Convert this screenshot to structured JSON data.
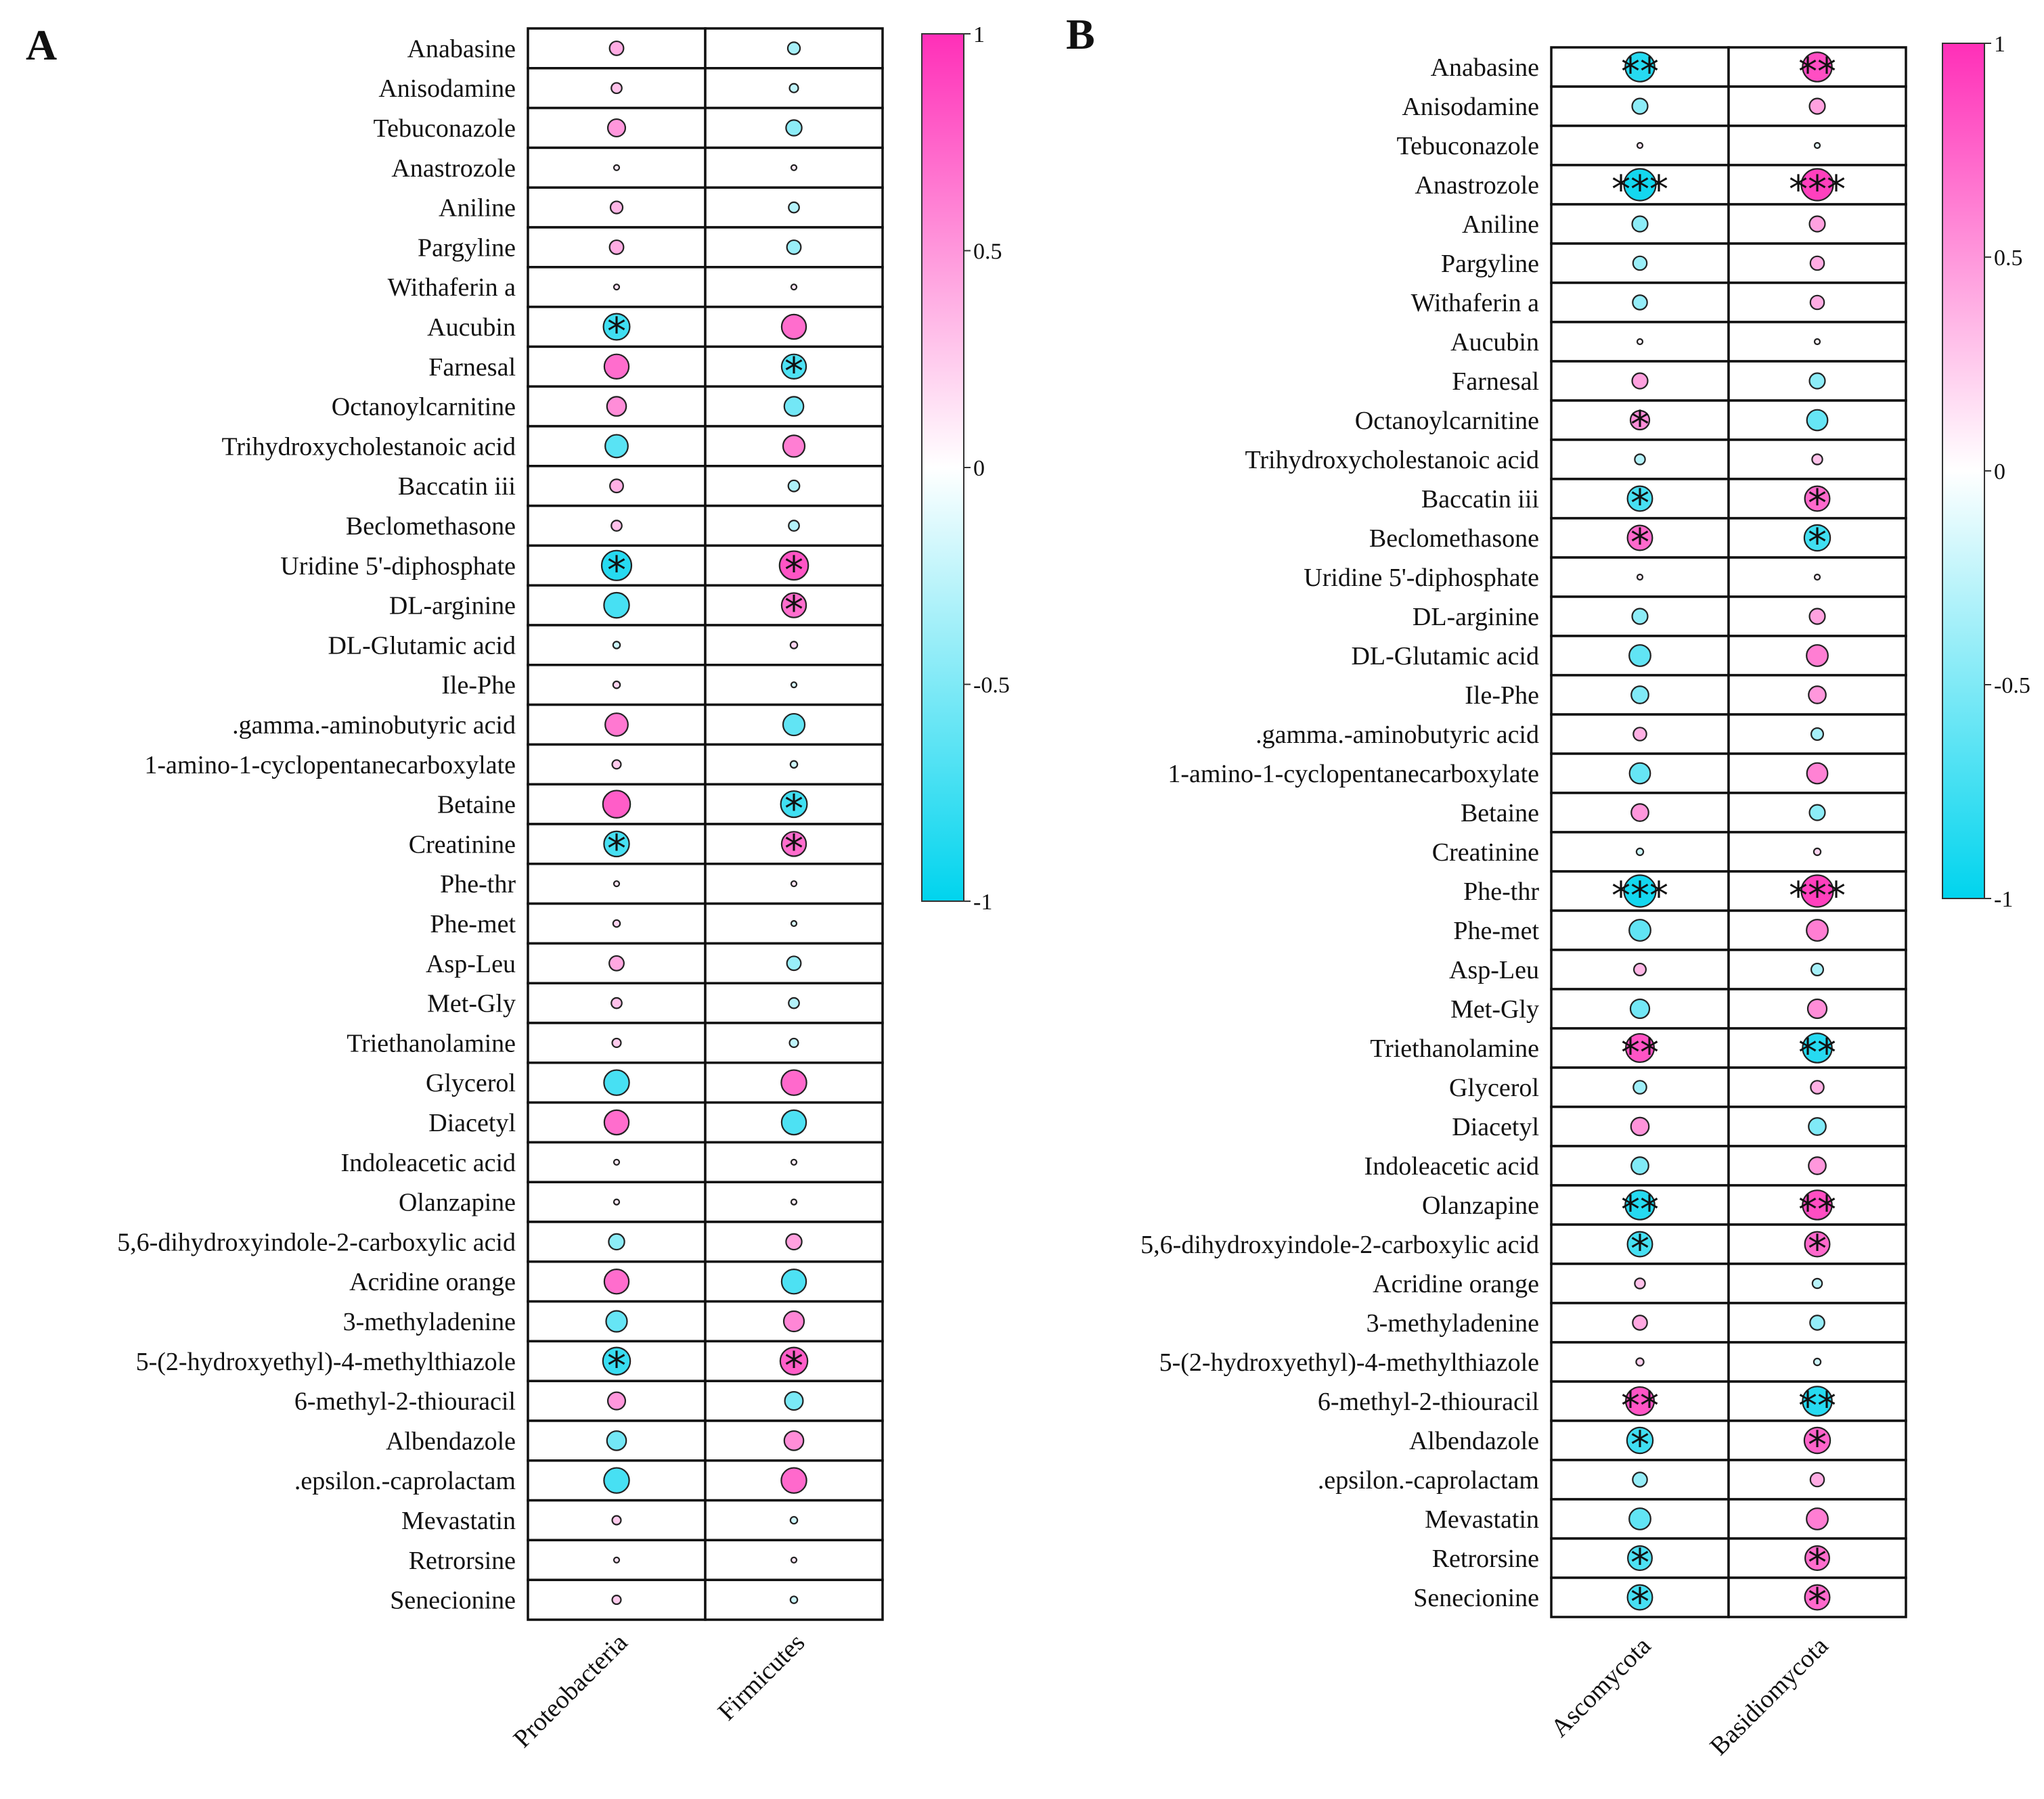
{
  "chart_data": [
    {
      "type": "heatmap",
      "panel": "A",
      "columns": [
        "Proteobacteria",
        "Firmicutes"
      ],
      "rows": [
        "Anabasine",
        "Anisodamine",
        "Tebuconazole",
        "Anastrozole",
        "Aniline",
        "Pargyline",
        "Withaferin a",
        "Aucubin",
        "Farnesal",
        "Octanoylcarnitine",
        "Trihydroxycholestanoic acid",
        "Baccatin iii",
        "Beclomethasone",
        "Uridine 5'-diphosphate",
        "DL-arginine",
        "DL-Glutamic acid",
        "Ile-Phe",
        ".gamma.-aminobutyric acid",
        "1-amino-1-cyclopentanecarboxylate",
        "Betaine",
        "Creatinine",
        "Phe-thr",
        "Phe-met",
        "Asp-Leu",
        "Met-Gly",
        "Triethanolamine",
        "Glycerol",
        "Diacetyl",
        "Indoleacetic acid",
        "Olanzapine",
        "5,6-dihydroxyindole-2-carboxylic acid",
        "Acridine orange",
        "3-methyladenine",
        "5-(2-hydroxyethyl)-4-methylthiazole",
        "6-methyl-2-thiouracil",
        "Albendazole",
        ".epsilon.-caprolactam",
        "Mevastatin",
        "Retrorsine",
        "Senecionine"
      ],
      "values": [
        [
          0.4,
          -0.35
        ],
        [
          0.3,
          -0.25
        ],
        [
          0.5,
          -0.45
        ],
        [
          0.1,
          0.1
        ],
        [
          0.35,
          -0.3
        ],
        [
          0.4,
          -0.4
        ],
        [
          0.15,
          0.12
        ],
        [
          -0.75,
          0.7
        ],
        [
          0.7,
          -0.7
        ],
        [
          0.55,
          -0.55
        ],
        [
          -0.65,
          0.62
        ],
        [
          0.38,
          -0.32
        ],
        [
          0.3,
          -0.3
        ],
        [
          -0.85,
          0.82
        ],
        [
          -0.72,
          0.7
        ],
        [
          -0.2,
          0.2
        ],
        [
          0.2,
          -0.15
        ],
        [
          0.65,
          -0.62
        ],
        [
          0.25,
          -0.2
        ],
        [
          0.78,
          -0.75
        ],
        [
          -0.72,
          0.7
        ],
        [
          0.12,
          0.12
        ],
        [
          0.2,
          -0.15
        ],
        [
          0.42,
          -0.4
        ],
        [
          0.3,
          -0.3
        ],
        [
          0.25,
          -0.25
        ],
        [
          -0.72,
          0.72
        ],
        [
          0.7,
          -0.7
        ],
        [
          0.1,
          0.08
        ],
        [
          0.1,
          0.08
        ],
        [
          -0.45,
          0.45
        ],
        [
          0.7,
          -0.7
        ],
        [
          -0.6,
          0.58
        ],
        [
          -0.78,
          0.78
        ],
        [
          0.5,
          -0.52
        ],
        [
          -0.55,
          0.55
        ],
        [
          -0.72,
          0.72
        ],
        [
          0.25,
          -0.2
        ],
        [
          0.15,
          0.12
        ],
        [
          0.25,
          -0.2
        ]
      ],
      "stars": [
        [
          "",
          ""
        ],
        [
          "",
          ""
        ],
        [
          "",
          ""
        ],
        [
          "",
          ""
        ],
        [
          "",
          ""
        ],
        [
          "",
          ""
        ],
        [
          "",
          ""
        ],
        [
          "*",
          ""
        ],
        [
          "",
          "*"
        ],
        [
          "",
          ""
        ],
        [
          "",
          ""
        ],
        [
          "",
          ""
        ],
        [
          "",
          ""
        ],
        [
          "*",
          "*"
        ],
        [
          "",
          "*"
        ],
        [
          "",
          ""
        ],
        [
          "",
          ""
        ],
        [
          "",
          ""
        ],
        [
          "",
          ""
        ],
        [
          "",
          "*"
        ],
        [
          "*",
          "*"
        ],
        [
          "",
          ""
        ],
        [
          "",
          ""
        ],
        [
          "",
          ""
        ],
        [
          "",
          ""
        ],
        [
          "",
          ""
        ],
        [
          "",
          ""
        ],
        [
          "",
          ""
        ],
        [
          "",
          ""
        ],
        [
          "",
          ""
        ],
        [
          "",
          ""
        ],
        [
          "",
          ""
        ],
        [
          "",
          ""
        ],
        [
          "*",
          "*"
        ],
        [
          "",
          ""
        ],
        [
          "",
          ""
        ],
        [
          "",
          ""
        ],
        [
          "",
          ""
        ],
        [
          "",
          ""
        ],
        [
          "",
          ""
        ]
      ],
      "colorbar": {
        "ticks": [
          "1",
          "0.5",
          "0",
          "-0.5",
          "-1"
        ],
        "range": [
          -1,
          1
        ]
      }
    },
    {
      "type": "heatmap",
      "panel": "B",
      "columns": [
        "Ascomycota",
        "Basidiomycota"
      ],
      "rows": [
        "Anabasine",
        "Anisodamine",
        "Tebuconazole",
        "Anastrozole",
        "Aniline",
        "Pargyline",
        "Withaferin a",
        "Aucubin",
        "Farnesal",
        "Octanoylcarnitine",
        "Trihydroxycholestanoic acid",
        "Baccatin iii",
        "Beclomethasone",
        "Uridine 5'-diphosphate",
        "DL-arginine",
        "DL-Glutamic acid",
        "Ile-Phe",
        ".gamma.-aminobutyric acid",
        "1-amino-1-cyclopentanecarboxylate",
        "Betaine",
        "Creatinine",
        "Phe-thr",
        "Phe-met",
        "Asp-Leu",
        "Met-Gly",
        "Triethanolamine",
        "Glycerol",
        "Diacetyl",
        "Indoleacetic acid",
        "Olanzapine",
        "5,6-dihydroxyindole-2-carboxylic acid",
        "Acridine orange",
        "3-methyladenine",
        "5-(2-hydroxyethyl)-4-methylthiazole",
        "6-methyl-2-thiouracil",
        "Albendazole",
        ".epsilon.-caprolactam",
        "Mevastatin",
        "Retrorsine",
        "Senecionine"
      ],
      "values": [
        [
          -0.85,
          0.85
        ],
        [
          -0.45,
          0.45
        ],
        [
          0.12,
          -0.1
        ],
        [
          -0.92,
          0.92
        ],
        [
          -0.45,
          0.45
        ],
        [
          -0.4,
          0.4
        ],
        [
          -0.42,
          0.4
        ],
        [
          0.05,
          0.05
        ],
        [
          0.45,
          -0.45
        ],
        [
          0.55,
          -0.6
        ],
        [
          -0.3,
          0.3
        ],
        [
          -0.72,
          0.72
        ],
        [
          0.72,
          -0.75
        ],
        [
          0.08,
          0.08
        ],
        [
          -0.45,
          0.45
        ],
        [
          -0.62,
          0.62
        ],
        [
          -0.5,
          0.5
        ],
        [
          0.38,
          -0.35
        ],
        [
          -0.6,
          0.6
        ],
        [
          0.5,
          -0.45
        ],
        [
          -0.2,
          0.2
        ],
        [
          -0.92,
          0.92
        ],
        [
          -0.62,
          0.62
        ],
        [
          0.35,
          -0.35
        ],
        [
          -0.55,
          0.55
        ],
        [
          0.82,
          -0.85
        ],
        [
          -0.38,
          0.38
        ],
        [
          0.52,
          -0.5
        ],
        [
          -0.5,
          0.5
        ],
        [
          -0.85,
          0.85
        ],
        [
          -0.72,
          0.72
        ],
        [
          0.3,
          -0.28
        ],
        [
          0.42,
          -0.42
        ],
        [
          0.22,
          -0.2
        ],
        [
          0.82,
          -0.85
        ],
        [
          -0.75,
          0.75
        ],
        [
          -0.42,
          0.4
        ],
        [
          -0.62,
          0.62
        ],
        [
          -0.7,
          0.7
        ],
        [
          -0.72,
          0.72
        ]
      ],
      "stars": [
        [
          "**",
          "**"
        ],
        [
          "",
          ""
        ],
        [
          "",
          ""
        ],
        [
          "***",
          "***"
        ],
        [
          "",
          ""
        ],
        [
          "",
          ""
        ],
        [
          "",
          ""
        ],
        [
          "",
          ""
        ],
        [
          "",
          ""
        ],
        [
          "*",
          ""
        ],
        [
          "",
          ""
        ],
        [
          "*",
          "*"
        ],
        [
          "*",
          "*"
        ],
        [
          "",
          ""
        ],
        [
          "",
          ""
        ],
        [
          "",
          ""
        ],
        [
          "",
          ""
        ],
        [
          "",
          ""
        ],
        [
          "",
          ""
        ],
        [
          "",
          ""
        ],
        [
          "",
          ""
        ],
        [
          "***",
          "***"
        ],
        [
          "",
          ""
        ],
        [
          "",
          ""
        ],
        [
          "",
          ""
        ],
        [
          "**",
          "**"
        ],
        [
          "",
          ""
        ],
        [
          "",
          ""
        ],
        [
          "",
          ""
        ],
        [
          "**",
          "**"
        ],
        [
          "*",
          "*"
        ],
        [
          "",
          ""
        ],
        [
          "",
          ""
        ],
        [
          "",
          ""
        ],
        [
          "**",
          "**"
        ],
        [
          "*",
          "*"
        ],
        [
          "",
          ""
        ],
        [
          "",
          ""
        ],
        [
          "*",
          "*"
        ],
        [
          "*",
          "*"
        ]
      ],
      "colorbar": {
        "ticks": [
          "1",
          "0.5",
          "0",
          "-0.5",
          "-1"
        ],
        "range": [
          -1,
          1
        ]
      }
    }
  ]
}
